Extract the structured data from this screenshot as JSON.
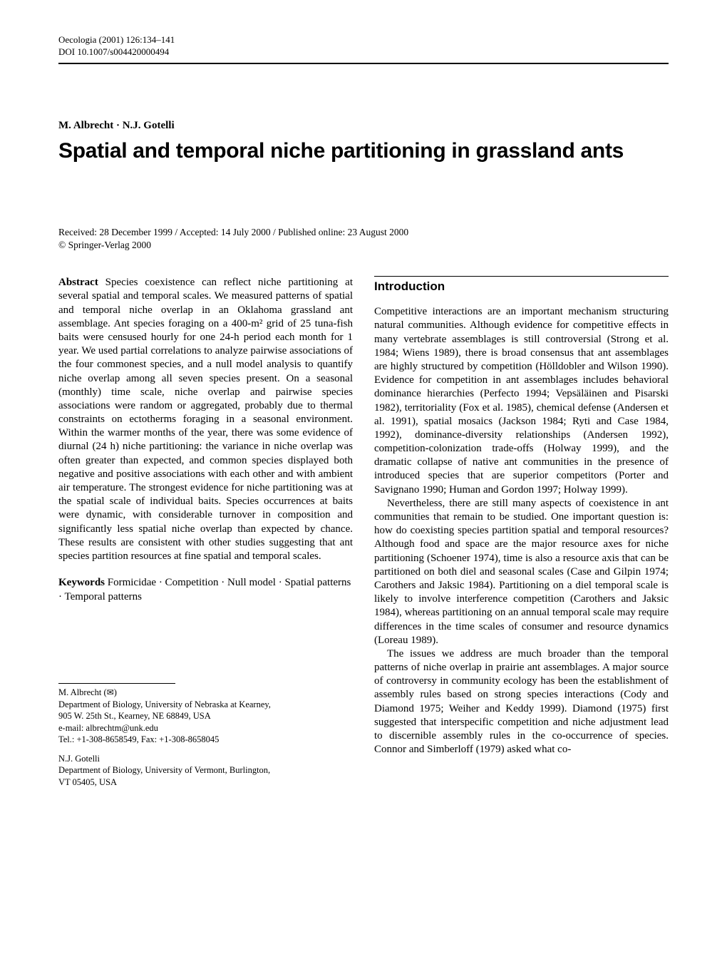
{
  "header": {
    "journal": "Oecologia (2001) 126:134–141",
    "doi": "DOI 10.1007/s004420000494"
  },
  "authors": "M. Albrecht · N.J. Gotelli",
  "title": "Spatial and temporal niche partitioning in grassland ants",
  "received": {
    "line1": "Received: 28 December 1999 / Accepted: 14 July 2000 / Published online: 23 August 2000",
    "line2": "© Springer-Verlag 2000"
  },
  "abstract": {
    "label": "Abstract",
    "text": "  Species coexistence can reflect niche partitioning at several spatial and temporal scales. We measured patterns of spatial and temporal niche overlap in an Oklahoma grassland ant assemblage. Ant species foraging on a 400-m² grid of 25 tuna-fish baits were censused hourly for one 24-h period each month for 1 year. We used partial correlations to analyze pairwise associations of the four commonest species, and a null model analysis to quantify niche overlap among all seven species present. On a seasonal (monthly) time scale, niche overlap and pairwise species associations were random or aggregated, probably due to thermal constraints on ectotherms foraging in a seasonal environment. Within the warmer months of the year, there was some evidence of diurnal (24 h) niche partitioning: the variance in niche overlap was often greater than expected, and common species displayed both negative and positive associations with each other and with ambient air temperature. The strongest evidence for niche partitioning was at the spatial scale of individual baits. Species occurrences at baits were dynamic, with considerable turnover in composition and significantly less spatial niche overlap than expected by chance. These results are consistent with other studies suggesting that ant species partition resources at fine spatial and temporal scales."
  },
  "keywords": {
    "label": "Keywords",
    "text": "  Formicidae · Competition · Null model · Spatial patterns · Temporal patterns"
  },
  "affiliations": {
    "a1": {
      "name": "M. Albrecht (",
      "nameEnd": ")",
      "dept": "Department of Biology, University of Nebraska at Kearney,",
      "addr": "905 W. 25th St., Kearney, NE 68849, USA",
      "email": "e-mail: albrechtm@unk.edu",
      "tel": "Tel.: +1-308-8658549, Fax: +1-308-8658045"
    },
    "a2": {
      "name": "N.J. Gotelli",
      "dept": "Department of Biology, University of Vermont, Burlington,",
      "addr": "VT 05405, USA"
    }
  },
  "introduction": {
    "heading": "Introduction",
    "p1": "Competitive interactions are an important mechanism structuring natural communities. Although evidence for competitive effects in many vertebrate assemblages is still controversial (Strong et al. 1984; Wiens 1989), there is broad consensus that ant assemblages are highly structured by competition (Hölldobler and Wilson 1990). Evidence for competition in ant assemblages includes behavioral dominance hierarchies (Perfecto 1994; Vepsäläinen and Pisarski 1982), territoriality (Fox et al. 1985), chemical defense (Andersen et al. 1991), spatial mosaics (Jackson 1984; Ryti and Case 1984, 1992), dominance-diversity relationships (Andersen 1992), competition-colonization trade-offs (Holway 1999), and the dramatic collapse of native ant communities in the presence of introduced species that are superior competitors (Porter and Savignano 1990; Human and Gordon 1997; Holway 1999).",
    "p2": "Nevertheless, there are still many aspects of coexistence in ant communities that remain to be studied. One important question is: how do coexisting species partition spatial and temporal resources? Although food and space are the major resource axes for niche partitioning (Schoener 1974), time is also a resource axis that can be partitioned on both diel and seasonal scales (Case and Gilpin 1974; Carothers and Jaksic 1984). Partitioning on a diel temporal scale is likely to involve interference competition (Carothers and Jaksic 1984), whereas partitioning on an annual temporal scale may require differences in the time scales of consumer and resource dynamics (Loreau 1989).",
    "p3": "The issues we address are much broader than the temporal patterns of niche overlap in prairie ant assemblages. A major source of controversy in community ecology has been the establishment of assembly rules based on strong species interactions (Cody and Diamond 1975; Weiher and Keddy 1999). Diamond (1975) first suggested that interspecific competition and niche adjustment lead to discernible assembly rules in the co-occurrence of species. Connor and Simberloff (1979) asked what co-"
  }
}
